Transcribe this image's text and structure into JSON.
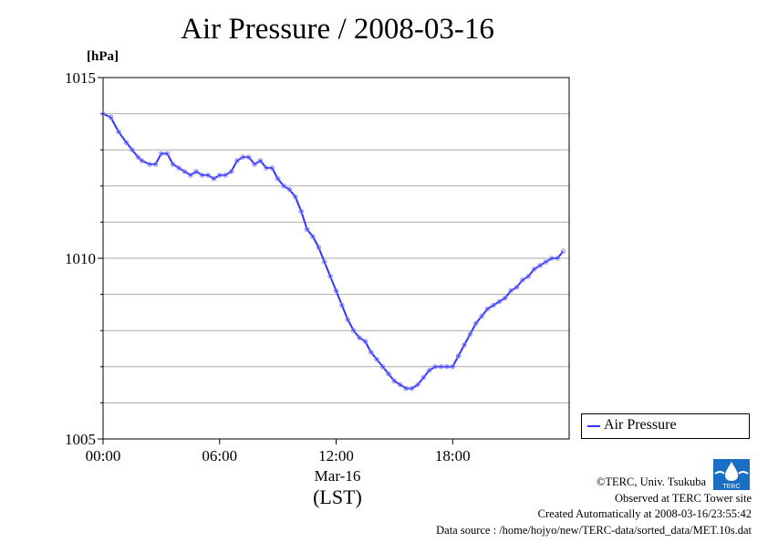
{
  "title": "Air Pressure / 2008-03-16",
  "y_unit": "[hPa]",
  "x_date": "Mar-16",
  "x_unit": "(LST)",
  "legend_label": "Air Pressure",
  "logo_text": "TERC",
  "credits": {
    "copyright": "©TERC, Univ. Tsukuba",
    "site": "Observed at TERC Tower site",
    "created": "Created Automatically at 2008-03-16/23:55:42",
    "source": "Data source : /home/hojyo/new/TERC-data/sorted_data/MET.10s.dat"
  },
  "colors": {
    "series": "#3333ff",
    "marker": "#8888ff",
    "grid": "#aaaaaa",
    "logo": "#1a6fc4"
  },
  "chart_data": {
    "type": "line",
    "title": "Air Pressure / 2008-03-16",
    "ylabel": "[hPa]",
    "xlabel": "(LST)",
    "xlim": [
      0,
      24
    ],
    "ylim": [
      1005,
      1015
    ],
    "x_ticks": [
      0,
      6,
      12,
      18
    ],
    "x_tick_labels": [
      "00:00",
      "06:00",
      "12:00",
      "18:00"
    ],
    "y_ticks": [
      1005,
      1010,
      1015
    ],
    "y_tick_labels": [
      "1005",
      "1010",
      "1015"
    ],
    "y_gridlines": [
      1006,
      1007,
      1008,
      1009,
      1010,
      1011,
      1012,
      1013,
      1014
    ],
    "grid": true,
    "legend": "right-bottom",
    "series": [
      {
        "name": "Air Pressure",
        "x": [
          0.0,
          0.4,
          0.8,
          1.2,
          1.5,
          1.8,
          2.0,
          2.4,
          2.7,
          3.0,
          3.3,
          3.6,
          3.9,
          4.2,
          4.5,
          4.8,
          5.1,
          5.4,
          5.7,
          6.0,
          6.3,
          6.6,
          6.9,
          7.2,
          7.5,
          7.8,
          8.1,
          8.4,
          8.7,
          9.0,
          9.3,
          9.6,
          9.9,
          10.2,
          10.5,
          10.8,
          11.1,
          11.4,
          11.7,
          12.0,
          12.3,
          12.6,
          12.9,
          13.2,
          13.5,
          13.8,
          14.1,
          14.4,
          14.7,
          15.0,
          15.3,
          15.6,
          15.9,
          16.2,
          16.5,
          16.8,
          17.1,
          17.4,
          17.7,
          18.0,
          18.3,
          18.6,
          18.9,
          19.2,
          19.5,
          19.8,
          20.1,
          20.4,
          20.7,
          21.0,
          21.3,
          21.6,
          21.9,
          22.2,
          22.5,
          22.8,
          23.1,
          23.4,
          23.7
        ],
        "y": [
          1014.0,
          1013.9,
          1013.5,
          1013.2,
          1013.0,
          1012.8,
          1012.7,
          1012.6,
          1012.6,
          1012.9,
          1012.9,
          1012.6,
          1012.5,
          1012.4,
          1012.3,
          1012.4,
          1012.3,
          1012.3,
          1012.2,
          1012.3,
          1012.3,
          1012.4,
          1012.7,
          1012.8,
          1012.8,
          1012.6,
          1012.7,
          1012.5,
          1012.5,
          1012.2,
          1012.0,
          1011.9,
          1011.7,
          1011.3,
          1010.8,
          1010.6,
          1010.3,
          1009.9,
          1009.5,
          1009.1,
          1008.7,
          1008.3,
          1008.0,
          1007.8,
          1007.7,
          1007.4,
          1007.2,
          1007.0,
          1006.8,
          1006.6,
          1006.5,
          1006.4,
          1006.4,
          1006.5,
          1006.7,
          1006.9,
          1007.0,
          1007.0,
          1007.0,
          1007.0,
          1007.3,
          1007.6,
          1007.9,
          1008.2,
          1008.4,
          1008.6,
          1008.7,
          1008.8,
          1008.9,
          1009.1,
          1009.2,
          1009.4,
          1009.5,
          1009.7,
          1009.8,
          1009.9,
          1010.0,
          1010.0,
          1010.2
        ]
      }
    ]
  }
}
